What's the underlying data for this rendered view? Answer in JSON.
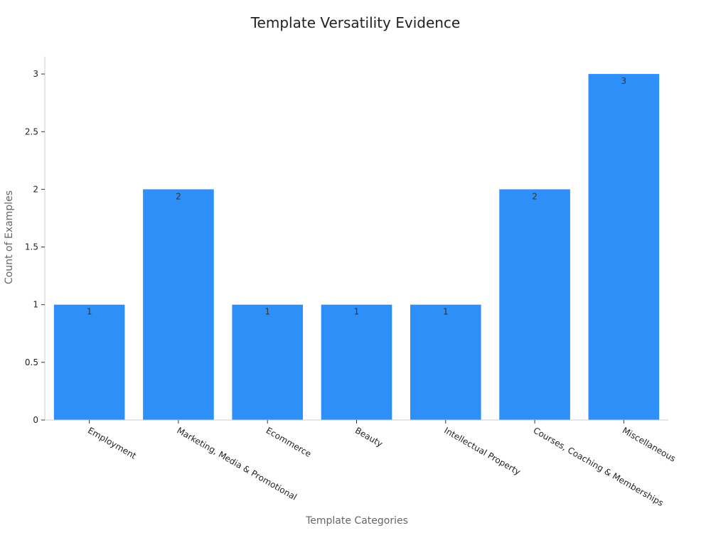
{
  "chart_data": {
    "type": "bar",
    "title": "Template Versatility Evidence",
    "xlabel": "Template Categories",
    "ylabel": "Count of Examples",
    "categories": [
      "Employment",
      "Marketing, Media & Promotional",
      "Ecommerce",
      "Beauty",
      "Intellectual Property",
      "Courses, Coaching & Memberships",
      "Miscellaneous"
    ],
    "values": [
      1,
      2,
      1,
      1,
      1,
      2,
      3
    ],
    "data_labels": [
      "1",
      "2",
      "1",
      "1",
      "1",
      "2",
      "3"
    ],
    "y_ticks": [
      "0",
      "0.5",
      "1",
      "1.5",
      "2",
      "2.5",
      "3"
    ],
    "ylim": [
      0,
      3.15
    ],
    "grid": false,
    "bar_color": "#2d8ff7"
  }
}
